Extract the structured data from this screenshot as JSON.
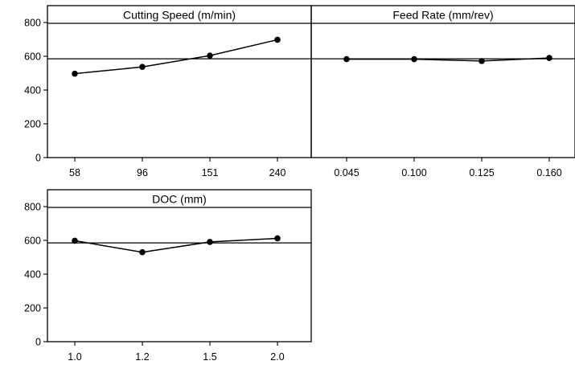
{
  "chart_data": {
    "type": "line",
    "chart_kind": "main effects plot",
    "y_ticks": [
      0,
      200,
      400,
      600,
      800
    ],
    "ylim": [
      0,
      900
    ],
    "reference_mean": 585,
    "grid": false,
    "legend": "none",
    "panels": [
      {
        "title": "Cutting Speed (m/min)",
        "categories": [
          "58",
          "96",
          "151",
          "240"
        ],
        "values": [
          497,
          537,
          604,
          698
        ]
      },
      {
        "title": "Feed Rate (mm/rev)",
        "categories": [
          "0.045",
          "0.100",
          "0.125",
          "0.160"
        ],
        "values": [
          583,
          583,
          572,
          590
        ]
      },
      {
        "title": "DOC (mm)",
        "categories": [
          "1.0",
          "1.2",
          "1.5",
          "2.0"
        ],
        "values": [
          598,
          530,
          591,
          612
        ]
      }
    ]
  }
}
